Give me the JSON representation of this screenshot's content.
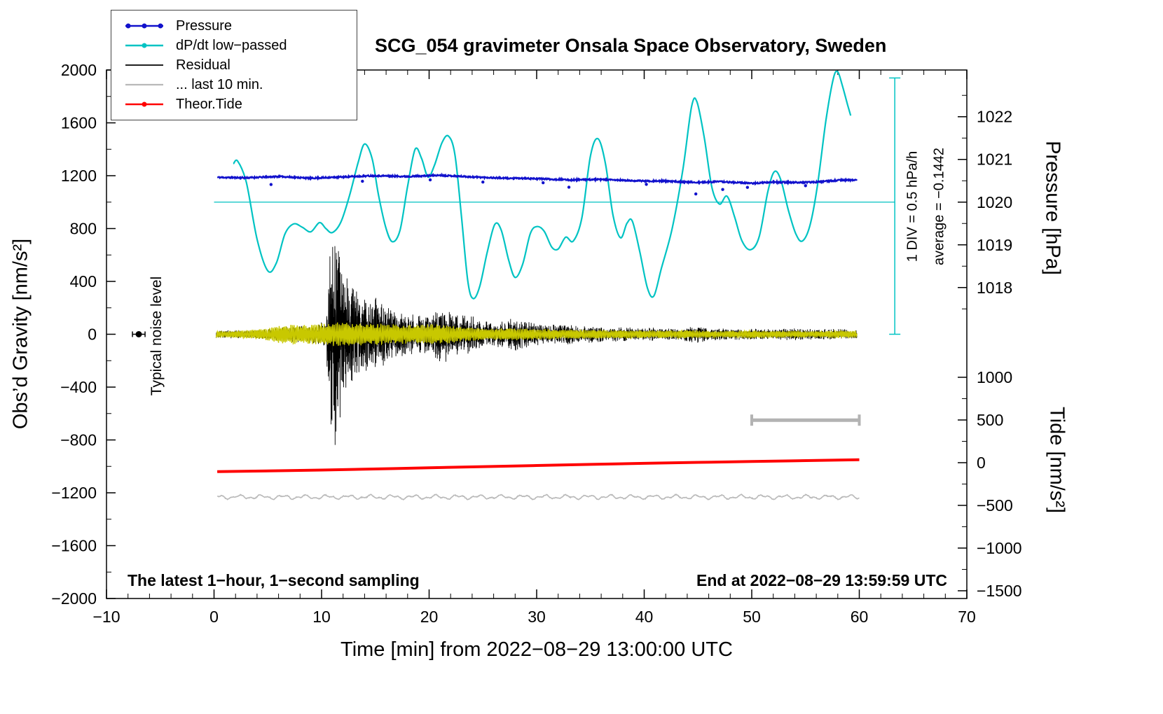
{
  "title": "SCG_054 gravimeter Onsala Space Observatory, Sweden",
  "axes": {
    "x": {
      "label": "Time [min] from 2022−08−29 13:00:00 UTC",
      "min": -10,
      "max": 70,
      "ticks": [
        -10,
        0,
        10,
        20,
        30,
        40,
        50,
        60,
        70
      ],
      "minor_step": 2
    },
    "y_left": {
      "label": "Obs’d Gravity [nm/s²]",
      "min": -2000,
      "max": 2000,
      "ticks": [
        -2000,
        -1600,
        -1200,
        -800,
        -400,
        0,
        400,
        800,
        1200,
        1600,
        2000
      ],
      "minor_step": 200
    },
    "y_right_pressure": {
      "label": "Pressure [hPa]",
      "ticks": [
        1018,
        1019,
        1020,
        1021,
        1022
      ],
      "minor_step": 0.5
    },
    "y_right_tide": {
      "label": "Tide [nm/s²]",
      "ticks": [
        -1500,
        -1000,
        -500,
        0,
        500,
        1000
      ],
      "minor_step": 250
    }
  },
  "legend": {
    "items": [
      {
        "label": "Pressure",
        "color": "#1111cc",
        "markers": 3,
        "line_width": 2.5
      },
      {
        "label": "dP/dt low−passed",
        "color": "#00c3c3",
        "markers": 1,
        "line_width": 2.5
      },
      {
        "label": "Residual",
        "color": "#000000",
        "markers": 0,
        "line_width": 1.8
      },
      {
        "label": "... last 10 min.",
        "color": "#b9b9b9",
        "markers": 0,
        "line_width": 2.2
      },
      {
        "label": "Theor.Tide",
        "color": "#ff0000",
        "markers": 1,
        "line_width": 2.5
      }
    ]
  },
  "annotations": {
    "div_scale": "1 DIV = 0.5 hPa/h",
    "average": "average = −0.1442",
    "noise_level": "Typical noise level",
    "sampling": "The latest 1−hour, 1−second sampling",
    "end_time": "End at 2022−08−29 13:59:59 UTC"
  },
  "chart_data": {
    "type": "line",
    "x_unit": "min",
    "x_range": [
      -10,
      70
    ],
    "gravity_range": [
      -2000,
      2000
    ],
    "scales": {
      "pressure_ref": {
        "hpa": 1020,
        "gravity": 1000,
        "gravity_per_hpa": 323.2
      },
      "tide_ref": {
        "tide": 0,
        "gravity": -972,
        "gravity_per_unit": 0.6463
      }
    },
    "average_line": {
      "gravity": 1000,
      "x_range": [
        0,
        63.3
      ],
      "color": "#00c3c3"
    },
    "div_bar": {
      "x": 63.3,
      "gravity_range": [
        0,
        1940
      ],
      "color": "#00c3c3"
    },
    "scale_bar": {
      "x_range": [
        50,
        60
      ],
      "gravity": -650,
      "color": "#b3b3b3"
    },
    "noise_marker": {
      "x": -7,
      "gravity": 0
    },
    "series": [
      {
        "name": "pressure",
        "axis": "pressure",
        "color": "#1111cc",
        "width": 2.4,
        "dt": 0.04,
        "noise_hpa": 0.016,
        "seed": 11,
        "anchors": [
          [
            0.3,
            1020.58
          ],
          [
            3,
            1020.57
          ],
          [
            6,
            1020.6
          ],
          [
            9,
            1020.56
          ],
          [
            12,
            1020.59
          ],
          [
            15,
            1020.62
          ],
          [
            18,
            1020.6
          ],
          [
            21,
            1020.63
          ],
          [
            24,
            1020.59
          ],
          [
            27,
            1020.56
          ],
          [
            30,
            1020.55
          ],
          [
            33,
            1020.52
          ],
          [
            36,
            1020.53
          ],
          [
            39,
            1020.5
          ],
          [
            42,
            1020.49
          ],
          [
            45,
            1020.46
          ],
          [
            47,
            1020.48
          ],
          [
            50,
            1020.44
          ],
          [
            52,
            1020.47
          ],
          [
            54,
            1020.46
          ],
          [
            56,
            1020.47
          ],
          [
            58,
            1020.51
          ],
          [
            59.8,
            1020.52
          ]
        ],
        "outlier_dots": [
          [
            5.3,
            -0.18
          ],
          [
            13.8,
            -0.12
          ],
          [
            20.1,
            -0.1
          ],
          [
            25,
            -0.11
          ],
          [
            30.6,
            -0.09
          ],
          [
            33,
            -0.17
          ],
          [
            40.2,
            -0.08
          ],
          [
            44.8,
            -0.27
          ],
          [
            47.3,
            -0.18
          ],
          [
            49.6,
            -0.1
          ],
          [
            55,
            -0.08
          ]
        ]
      },
      {
        "name": "dpdt_lowpassed",
        "axis": "gravity",
        "color": "#00c3c3",
        "width": 2.2,
        "smooth": true,
        "anchors": [
          [
            1.8,
            1290
          ],
          [
            2.2,
            1310
          ],
          [
            3,
            1150
          ],
          [
            4,
            720
          ],
          [
            5,
            480
          ],
          [
            5.8,
            540
          ],
          [
            6.6,
            760
          ],
          [
            7.4,
            835
          ],
          [
            8.2,
            810
          ],
          [
            9,
            775
          ],
          [
            9.8,
            845
          ],
          [
            10.4,
            800
          ],
          [
            11,
            770
          ],
          [
            11.8,
            850
          ],
          [
            12.6,
            1050
          ],
          [
            13.4,
            1300
          ],
          [
            14,
            1440
          ],
          [
            14.7,
            1330
          ],
          [
            15.3,
            1050
          ],
          [
            16,
            800
          ],
          [
            16.6,
            700
          ],
          [
            17.3,
            790
          ],
          [
            18,
            1120
          ],
          [
            18.7,
            1400
          ],
          [
            19.3,
            1330
          ],
          [
            19.9,
            1190
          ],
          [
            20.5,
            1280
          ],
          [
            21.2,
            1450
          ],
          [
            21.8,
            1500
          ],
          [
            22.4,
            1360
          ],
          [
            23,
            900
          ],
          [
            23.6,
            400
          ],
          [
            24.1,
            270
          ],
          [
            24.7,
            360
          ],
          [
            25.4,
            620
          ],
          [
            26.1,
            830
          ],
          [
            26.7,
            790
          ],
          [
            27.4,
            560
          ],
          [
            28,
            430
          ],
          [
            28.7,
            530
          ],
          [
            29.4,
            760
          ],
          [
            30,
            815
          ],
          [
            30.7,
            780
          ],
          [
            31.4,
            660
          ],
          [
            32,
            645
          ],
          [
            32.7,
            735
          ],
          [
            33.4,
            705
          ],
          [
            34.2,
            880
          ],
          [
            35,
            1350
          ],
          [
            35.7,
            1480
          ],
          [
            36.4,
            1290
          ],
          [
            37.1,
            900
          ],
          [
            37.8,
            730
          ],
          [
            38.4,
            840
          ],
          [
            38.9,
            855
          ],
          [
            39.6,
            620
          ],
          [
            40.3,
            350
          ],
          [
            40.9,
            290
          ],
          [
            41.6,
            500
          ],
          [
            42.6,
            800
          ],
          [
            43.6,
            1250
          ],
          [
            44.4,
            1720
          ],
          [
            44.9,
            1760
          ],
          [
            45.6,
            1480
          ],
          [
            46.3,
            1110
          ],
          [
            47,
            985
          ],
          [
            47.7,
            1045
          ],
          [
            48.4,
            890
          ],
          [
            49.1,
            705
          ],
          [
            49.9,
            640
          ],
          [
            50.7,
            740
          ],
          [
            51.5,
            1080
          ],
          [
            52.1,
            1230
          ],
          [
            52.7,
            1170
          ],
          [
            53.4,
            940
          ],
          [
            54.1,
            760
          ],
          [
            54.7,
            705
          ],
          [
            55.4,
            820
          ],
          [
            56.1,
            1120
          ],
          [
            56.9,
            1620
          ],
          [
            57.6,
            1940
          ],
          [
            58,
            1985
          ],
          [
            58.4,
            1890
          ],
          [
            58.9,
            1740
          ],
          [
            59.2,
            1655
          ]
        ]
      },
      {
        "name": "residual",
        "axis": "gravity",
        "color": "#000000",
        "width": 0.9,
        "dt": 0.015,
        "seed": 7,
        "synth": {
          "sin_freq": 150,
          "sin_amp": 0.55,
          "rand_amp": 0.45
        },
        "envelope": [
          [
            0,
            28
          ],
          [
            4,
            35
          ],
          [
            6,
            50
          ],
          [
            8,
            65
          ],
          [
            9.5,
            75
          ],
          [
            10.4,
            110
          ],
          [
            10.8,
            650
          ],
          [
            11.1,
            950
          ],
          [
            11.4,
            820
          ],
          [
            11.8,
            600
          ],
          [
            12.2,
            480
          ],
          [
            12.8,
            420
          ],
          [
            13.3,
            360
          ],
          [
            14,
            320
          ],
          [
            14.8,
            300
          ],
          [
            15.5,
            260
          ],
          [
            16.5,
            220
          ],
          [
            17.5,
            190
          ],
          [
            18.5,
            160
          ],
          [
            19.5,
            150
          ],
          [
            20.5,
            180
          ],
          [
            21.2,
            230
          ],
          [
            21.8,
            200
          ],
          [
            22.5,
            160
          ],
          [
            23.2,
            190
          ],
          [
            24,
            140
          ],
          [
            25,
            105
          ],
          [
            26,
            90
          ],
          [
            27,
            110
          ],
          [
            28,
            130
          ],
          [
            29,
            115
          ],
          [
            30,
            90
          ],
          [
            31,
            80
          ],
          [
            32,
            72
          ],
          [
            33,
            80
          ],
          [
            34,
            62
          ],
          [
            35,
            70
          ],
          [
            36,
            58
          ],
          [
            37,
            55
          ],
          [
            38,
            60
          ],
          [
            39,
            52
          ],
          [
            40,
            46
          ],
          [
            41,
            52
          ],
          [
            42,
            46
          ],
          [
            43,
            42
          ],
          [
            44,
            60
          ],
          [
            45,
            68
          ],
          [
            46,
            50
          ],
          [
            47,
            46
          ],
          [
            48,
            42
          ],
          [
            50,
            42
          ],
          [
            52,
            40
          ],
          [
            54,
            46
          ],
          [
            56,
            40
          ],
          [
            58,
            42
          ],
          [
            60,
            36
          ]
        ]
      },
      {
        "name": "residual_lowpassed",
        "axis": "gravity",
        "color": "#c8c800",
        "width": 1.4,
        "dt": 0.02,
        "seed": 21,
        "synth": {
          "sin_freq": 45,
          "sin_amp": 0.8,
          "rand_amp": 0.25
        },
        "envelope": [
          [
            0,
            22
          ],
          [
            3,
            30
          ],
          [
            5,
            45
          ],
          [
            6,
            65
          ],
          [
            8,
            75
          ],
          [
            10,
            80
          ],
          [
            11,
            85
          ],
          [
            12,
            88
          ],
          [
            14,
            82
          ],
          [
            16,
            76
          ],
          [
            18,
            70
          ],
          [
            20,
            76
          ],
          [
            21.5,
            70
          ],
          [
            23,
            55
          ],
          [
            24,
            48
          ],
          [
            26,
            42
          ],
          [
            28,
            46
          ],
          [
            30,
            40
          ],
          [
            32,
            36
          ],
          [
            34,
            34
          ],
          [
            36,
            32
          ],
          [
            38,
            30
          ],
          [
            40,
            28
          ],
          [
            42,
            28
          ],
          [
            44,
            32
          ],
          [
            45,
            26
          ],
          [
            46,
            24
          ],
          [
            48,
            26
          ],
          [
            50,
            28
          ],
          [
            52,
            25
          ],
          [
            54,
            25
          ],
          [
            56,
            24
          ],
          [
            58,
            28
          ],
          [
            60,
            24
          ]
        ]
      },
      {
        "name": "theor_tide",
        "axis": "tide",
        "color": "#ff0000",
        "width": 4,
        "smooth": true,
        "anchors": [
          [
            0.3,
            -105
          ],
          [
            10,
            -86
          ],
          [
            20,
            -60
          ],
          [
            30,
            -33
          ],
          [
            40,
            -8
          ],
          [
            50,
            14
          ],
          [
            60,
            34
          ]
        ]
      },
      {
        "name": "last_10_min",
        "axis": "gravity",
        "color": "#b9b9b9",
        "width": 1.6,
        "dt": 0.05,
        "seed": 31,
        "baseline": -1232,
        "rand_amp": 3,
        "x_range": [
          0.3,
          60
        ],
        "components": [
          [
            11,
            3.1,
            0.5
          ],
          [
            7,
            7.3,
            2.0
          ]
        ]
      }
    ]
  }
}
